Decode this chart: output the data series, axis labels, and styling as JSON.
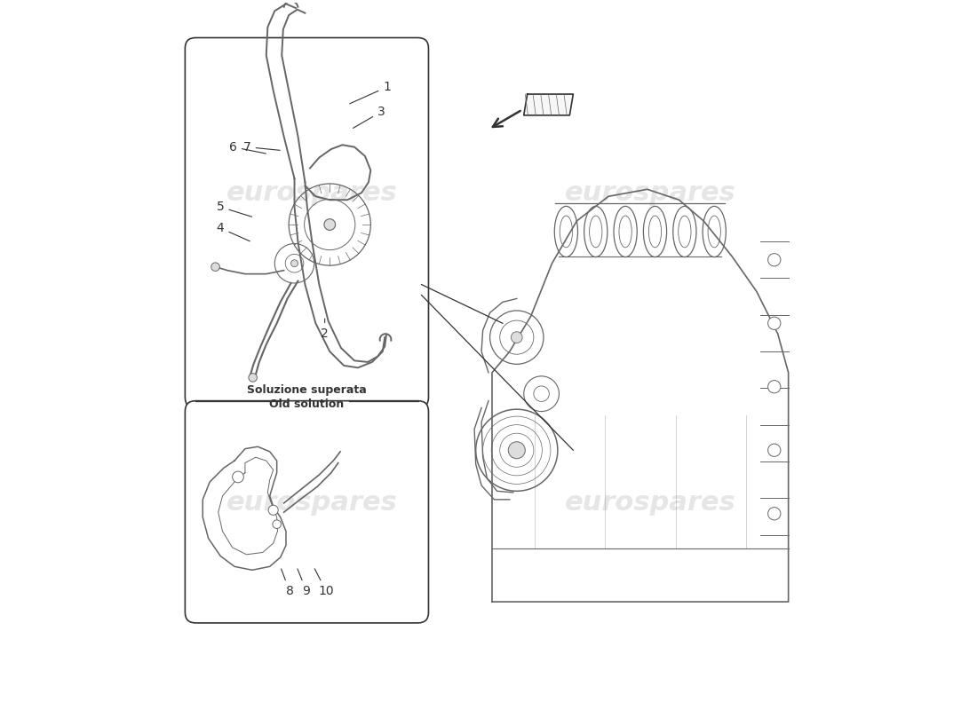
{
  "title": "",
  "background_color": "#ffffff",
  "watermark_text": "eurospares",
  "watermark_color": "#c8c8c8",
  "watermark_alpha": 0.45,
  "line_color": "#666666",
  "line_color_dark": "#333333",
  "label_old_solution_it": "Soluzione superata",
  "label_old_solution_en": "Old solution",
  "font_size_label": 10,
  "font_size_watermark": 22
}
